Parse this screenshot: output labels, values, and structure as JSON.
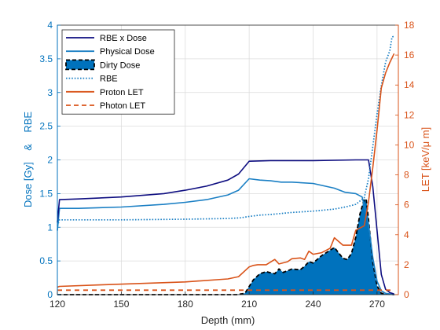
{
  "chart_data": {
    "type": "line",
    "title": "",
    "xlabel": "Depth (mm)",
    "ylabel_left": "Dose [Gy]    &    RBE",
    "ylabel_right": "LET [keV/μ m]",
    "xlim": [
      120,
      280
    ],
    "ylim_left": [
      0,
      4
    ],
    "ylim_right": [
      0,
      18
    ],
    "x_ticks": [
      120,
      150,
      180,
      210,
      240,
      270
    ],
    "y_left_ticks": [
      0,
      0.5,
      1,
      1.5,
      2,
      2.5,
      3,
      3.5,
      4
    ],
    "y_left_tick_labels": [
      "0",
      "0.5",
      "1",
      "1.5",
      "2",
      "2.5",
      "3",
      "3.5",
      "4"
    ],
    "y_right_ticks": [
      0,
      2,
      4,
      6,
      8,
      10,
      12,
      14,
      16,
      18
    ],
    "grid": true,
    "legend_position": "top-left",
    "colors": {
      "rbe_dose": "#0D0D80",
      "physical_dose": "#1A7FC4",
      "dirty_fill": "#0072BD",
      "dirty_edge": "#000000",
      "rbe": "#1A7FC4",
      "proton_let": "#D95319",
      "photon_let": "#D95319",
      "left_axis": "#0072BD",
      "right_axis": "#D95319"
    },
    "series": [
      {
        "name": "RBE x Dose",
        "axis": "left",
        "style": "solid",
        "x": [
          120,
          121,
          130,
          150,
          170,
          180,
          190,
          200,
          205,
          210,
          220,
          240,
          260,
          264,
          266,
          268,
          270,
          272,
          274,
          276,
          278
        ],
        "y": [
          1.07,
          1.41,
          1.42,
          1.45,
          1.5,
          1.55,
          1.61,
          1.7,
          1.79,
          1.98,
          1.99,
          1.99,
          2.0,
          2.0,
          2.0,
          1.6,
          0.95,
          0.3,
          0.08,
          0.03,
          0.01
        ]
      },
      {
        "name": "Physical Dose",
        "axis": "left",
        "style": "solid",
        "x": [
          120,
          121,
          130,
          150,
          170,
          180,
          190,
          200,
          205,
          210,
          215,
          220,
          225,
          230,
          240,
          250,
          255,
          260,
          263,
          266,
          268,
          270,
          272,
          274,
          276,
          278
        ],
        "y": [
          0.95,
          1.28,
          1.28,
          1.3,
          1.34,
          1.37,
          1.41,
          1.48,
          1.55,
          1.72,
          1.7,
          1.69,
          1.67,
          1.67,
          1.65,
          1.58,
          1.52,
          1.5,
          1.45,
          1.05,
          0.55,
          0.2,
          0.06,
          0.02,
          0.01,
          0.0
        ]
      },
      {
        "name": "Dirty Dose",
        "axis": "left",
        "style": "filled",
        "x": [
          120,
          204,
          208,
          212,
          215,
          218,
          222,
          224,
          226,
          230,
          234,
          236,
          238,
          240,
          244,
          248,
          250,
          252,
          254,
          256,
          258,
          260,
          262,
          264,
          265,
          266,
          267,
          268,
          270,
          272,
          278
        ],
        "y": [
          0,
          0,
          0.02,
          0.22,
          0.31,
          0.34,
          0.31,
          0.38,
          0.33,
          0.38,
          0.37,
          0.42,
          0.49,
          0.47,
          0.58,
          0.66,
          0.7,
          0.62,
          0.54,
          0.52,
          0.61,
          0.85,
          1.2,
          1.42,
          1.4,
          1.12,
          0.8,
          0.48,
          0.13,
          0.02,
          0
        ]
      },
      {
        "name": "RBE",
        "axis": "left",
        "style": "dotted",
        "x": [
          120,
          121,
          130,
          150,
          180,
          200,
          206,
          210,
          215,
          220,
          230,
          240,
          250,
          255,
          260,
          264,
          266,
          268,
          270,
          272,
          274,
          276,
          277,
          278
        ],
        "y": [
          1.02,
          1.11,
          1.11,
          1.11,
          1.12,
          1.13,
          1.14,
          1.16,
          1.18,
          1.19,
          1.22,
          1.24,
          1.27,
          1.3,
          1.34,
          1.44,
          1.72,
          2.2,
          2.68,
          3.1,
          3.45,
          3.62,
          3.82,
          3.84
        ]
      },
      {
        "name": "Proton LET",
        "axis": "right",
        "style": "solid",
        "x": [
          120,
          121,
          140,
          160,
          180,
          200,
          205,
          210,
          212,
          214,
          218,
          222,
          224,
          228,
          230,
          234,
          236,
          238,
          240,
          244,
          248,
          250,
          254,
          258,
          260,
          264,
          266,
          268,
          270,
          272,
          274,
          276,
          278
        ],
        "y": [
          0.5,
          0.55,
          0.65,
          0.75,
          0.85,
          1.05,
          1.2,
          1.85,
          1.95,
          2.0,
          2.0,
          2.35,
          2.05,
          2.2,
          2.4,
          2.45,
          2.35,
          2.9,
          2.7,
          2.8,
          3.1,
          3.8,
          3.3,
          3.3,
          4.3,
          4.6,
          6.2,
          8.5,
          11.0,
          13.8,
          14.8,
          15.5,
          16.1
        ]
      },
      {
        "name": "Photon  LET",
        "axis": "right",
        "style": "dashed",
        "x": [
          120,
          278
        ],
        "y": [
          0.3,
          0.3
        ]
      }
    ]
  }
}
